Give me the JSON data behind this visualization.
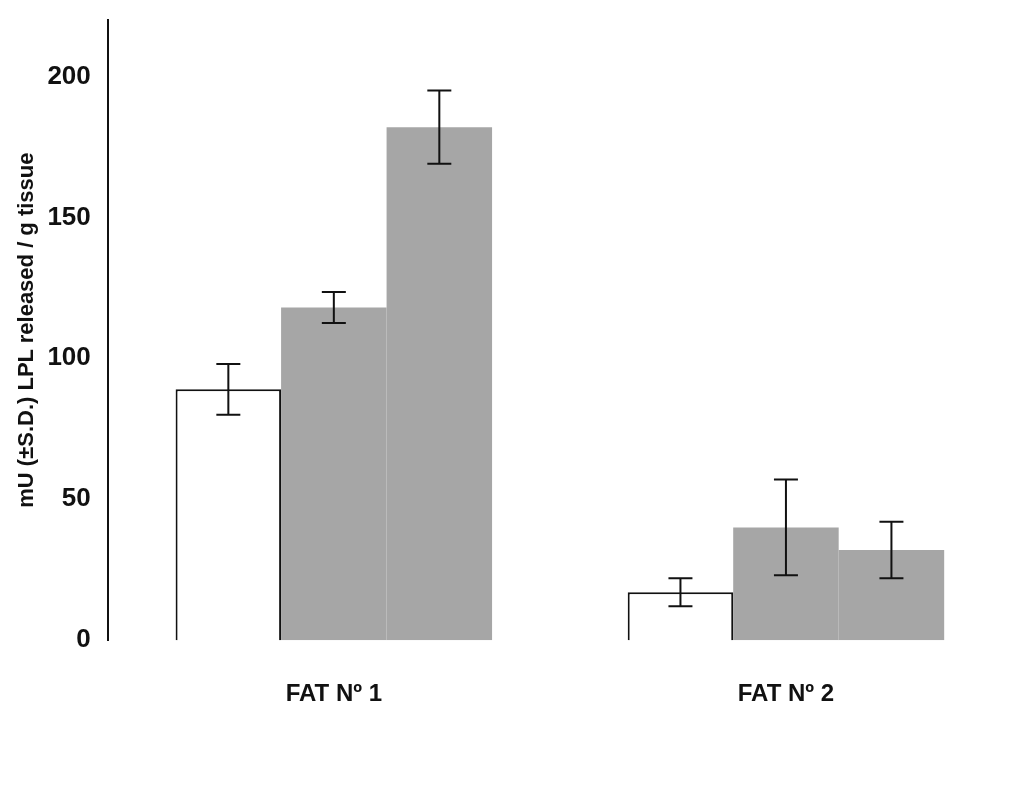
{
  "chart_data": {
    "type": "bar",
    "ylabel": "mU (±S.D.) LPL released / g tissue",
    "categories": [
      "FAT Nº 1",
      "FAT Nº 2"
    ],
    "series": [
      {
        "color": "#ffffff",
        "values": [
          89,
          17
        ],
        "errors": [
          9,
          5
        ]
      },
      {
        "color": "#a6a6a6",
        "values": [
          118,
          40
        ],
        "errors": [
          5.5,
          17
        ]
      },
      {
        "color": "#a6a6a6",
        "values": [
          182,
          32
        ],
        "errors": [
          13,
          10
        ]
      }
    ],
    "ylim": [
      0,
      220
    ],
    "yticks": [
      0,
      50,
      100,
      150,
      200
    ],
    "grid": false,
    "legend": false
  }
}
